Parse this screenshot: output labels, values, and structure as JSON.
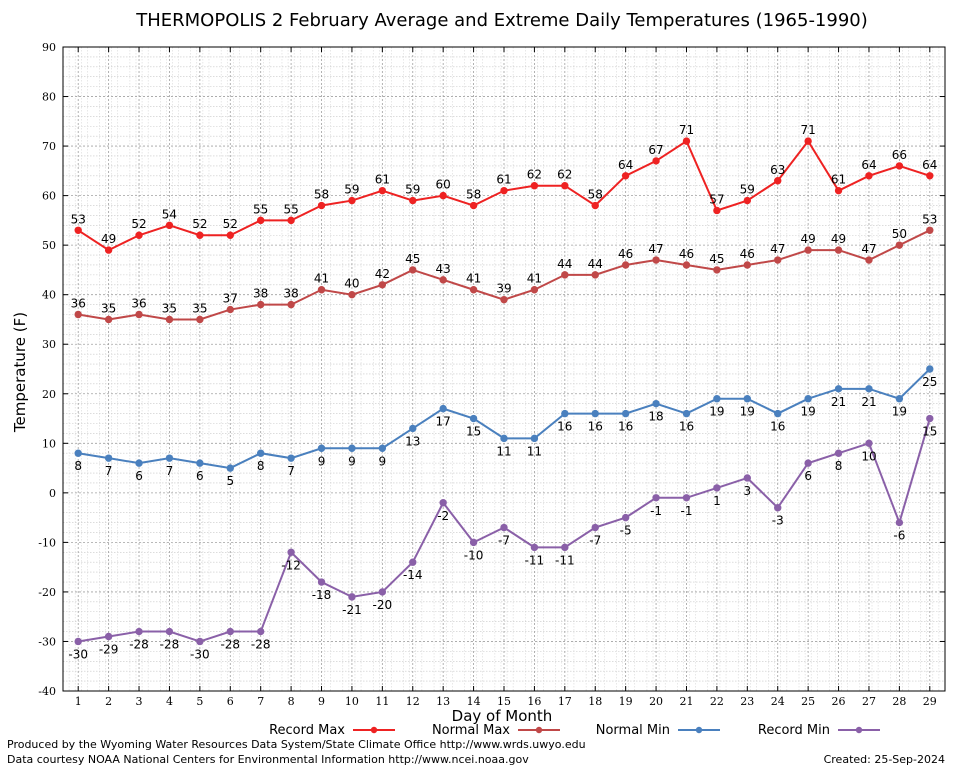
{
  "chart_data": {
    "type": "line",
    "title": "THERMOPOLIS 2 February Average and Extreme Daily Temperatures (1965-1990)",
    "xlabel": "Day of Month",
    "ylabel": "Temperature (F)",
    "ylim": [
      -40,
      90
    ],
    "yticks": [
      -40,
      -30,
      -20,
      -10,
      0,
      10,
      20,
      30,
      40,
      50,
      60,
      70,
      80,
      90
    ],
    "x": [
      1,
      2,
      3,
      4,
      5,
      6,
      7,
      8,
      9,
      10,
      11,
      12,
      13,
      14,
      15,
      16,
      17,
      18,
      19,
      20,
      21,
      22,
      23,
      24,
      25,
      26,
      27,
      28,
      29
    ],
    "grid": true,
    "legend_position": "bottom",
    "series": [
      {
        "name": "Record Max",
        "color": "#ee2222",
        "values": [
          53,
          49,
          52,
          54,
          52,
          52,
          55,
          55,
          58,
          59,
          61,
          59,
          60,
          58,
          61,
          62,
          62,
          58,
          64,
          67,
          71,
          57,
          59,
          63,
          71,
          61,
          64,
          66,
          64
        ]
      },
      {
        "name": "Normal Max",
        "color": "#c04848",
        "values": [
          36,
          35,
          36,
          35,
          35,
          37,
          38,
          38,
          41,
          40,
          42,
          45,
          43,
          41,
          39,
          41,
          44,
          44,
          46,
          47,
          46,
          45,
          46,
          47,
          49,
          49,
          47,
          50,
          53
        ]
      },
      {
        "name": "Normal Min",
        "color": "#4a80be",
        "values": [
          8,
          7,
          6,
          7,
          6,
          5,
          8,
          7,
          9,
          9,
          9,
          13,
          17,
          15,
          11,
          11,
          16,
          16,
          16,
          18,
          16,
          19,
          19,
          16,
          19,
          21,
          21,
          19,
          25
        ]
      },
      {
        "name": "Record Min",
        "color": "#8a60a8",
        "values": [
          -30,
          -29,
          -28,
          -28,
          -30,
          -28,
          -28,
          -12,
          -18,
          -21,
          -20,
          -14,
          -2,
          -10,
          -7,
          -11,
          -11,
          -7,
          -5,
          -1,
          -1,
          1,
          3,
          -3,
          6,
          8,
          10,
          -6,
          15
        ]
      }
    ]
  },
  "footer": {
    "line1": "Produced by the Wyoming Water Resources Data System/State Climate Office http://www.wrds.uwyo.edu",
    "line2": "Data courtesy NOAA National Centers for Environmental Information http://www.ncei.noaa.gov",
    "created": "Created: 25-Sep-2024"
  }
}
